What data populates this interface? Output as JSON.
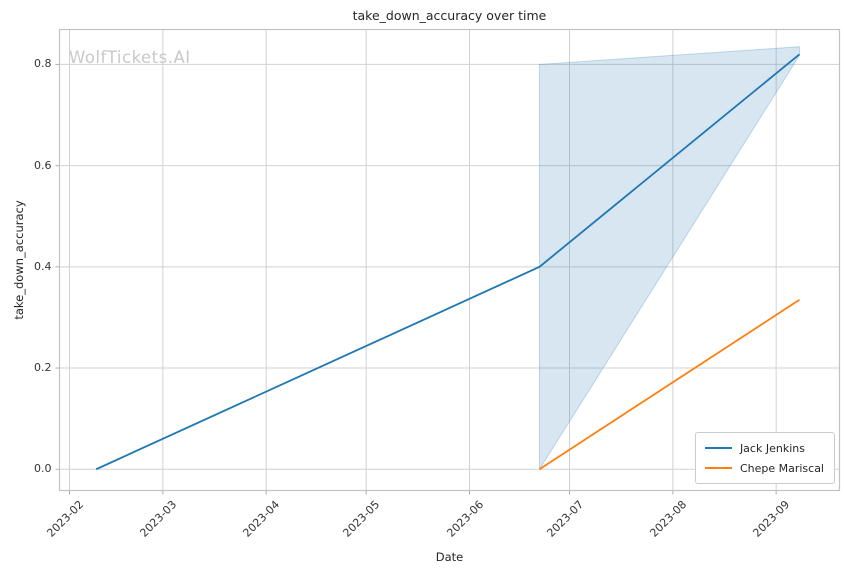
{
  "chart_data": {
    "type": "line",
    "title": "take_down_accuracy over time",
    "xlabel": "Date",
    "ylabel": "take_down_accuracy",
    "watermark": "WolfTickets.AI",
    "x_tick_labels": [
      "2023-02",
      "2023-03",
      "2023-04",
      "2023-05",
      "2023-06",
      "2023-07",
      "2023-08",
      "2023-09"
    ],
    "y_tick_labels": [
      "0.0",
      "0.2",
      "0.4",
      "0.6",
      "0.8"
    ],
    "y_ticks": [
      0.0,
      0.2,
      0.4,
      0.6,
      0.8
    ],
    "xlim": [
      "2023-01-29",
      "2023-09-20"
    ],
    "ylim": [
      -0.042,
      0.869
    ],
    "grid": true,
    "legend_position": "lower right",
    "colors": {
      "grid": "#d2d2d2",
      "spine": "#c2c2c2",
      "tick": "#b0b0b0",
      "text": "#262626",
      "watermark": "#c9c9c9"
    },
    "series": [
      {
        "name": "Jack Jenkins",
        "color": "#1f77b4",
        "x": [
          "2023-02-09",
          "2023-06-22",
          "2023-09-08"
        ],
        "y": [
          0.0,
          0.4,
          0.82
        ],
        "band": {
          "x": [
            "2023-06-22",
            "2023-09-08"
          ],
          "lower": [
            0.0,
            0.818
          ],
          "upper": [
            0.8,
            0.835
          ],
          "fill": "#1f77b4",
          "fill_opacity": 0.18
        }
      },
      {
        "name": "Chepe Mariscal",
        "color": "#ff7f0e",
        "x": [
          "2023-06-22",
          "2023-09-08"
        ],
        "y": [
          0.0,
          0.335
        ]
      }
    ]
  }
}
